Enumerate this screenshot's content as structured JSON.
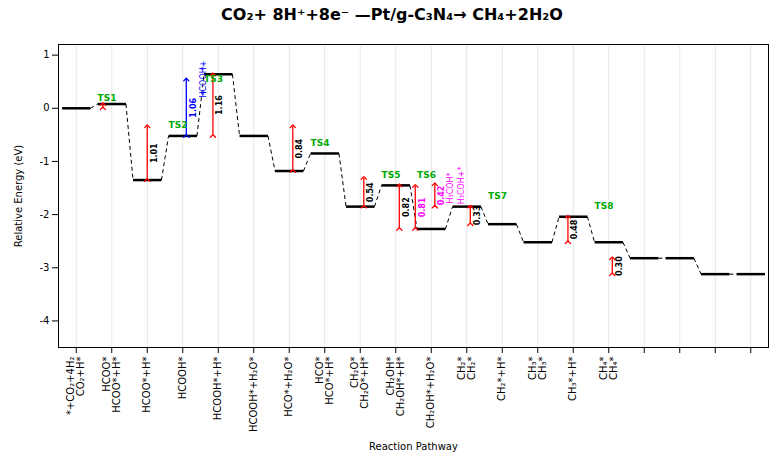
{
  "chart_data": {
    "type": "levels",
    "title": "CO₂+ 8H⁺+8e⁻ —Pt/g-C₃N₄→ CH₄+2H₂O",
    "xlabel": "Reaction Pathway",
    "ylabel": "Relative Energy (eV)",
    "categories": [
      "*+CO₂+4H₂\nCO₂+H*",
      "HCOO*\nHCOO*+H*",
      "HCOO*+H*",
      "HCOOH*",
      "HCOOH*+H*",
      "HCOOH*+H₂O*",
      "HCO*+H₂O*",
      "HCO*\nHCO*+H*",
      "CH₂O*\nCH₂O*+H*",
      "CH₂OH*\nCH₂OH*+H*",
      "CH₂OH*+H₂O*",
      "CH₂*\nCH₂*",
      "CH₂*+H*",
      "CH₃*\nCH₃*",
      "CH₃*+H*",
      "CH₄*\nCH₄*",
      null,
      null,
      null,
      null
    ],
    "values": [
      0.0,
      0.08,
      -1.35,
      -0.52,
      0.64,
      -0.52,
      -1.18,
      -0.85,
      -1.85,
      -1.45,
      -2.27,
      -1.85,
      -2.18,
      -2.52,
      -2.04,
      -2.52,
      -2.82,
      -2.82,
      -3.12,
      -3.12
    ],
    "color": "black",
    "ylim": [
      -4.5,
      1.2
    ],
    "yticks": [
      -4,
      -3,
      -2,
      -1,
      0,
      1
    ],
    "grid": true,
    "ts_labels": [
      {
        "text": "TS1",
        "x": 0.6,
        "y": 0.14,
        "color": "#00aa00"
      },
      {
        "text": "TS2",
        "x": 2.6,
        "y": -0.38,
        "color": "#00aa00"
      },
      {
        "text": "TS3",
        "x": 3.6,
        "y": 0.5,
        "color": "#00aa00"
      },
      {
        "text": "TS4",
        "x": 6.6,
        "y": -0.7,
        "color": "#00aa00"
      },
      {
        "text": "TS5",
        "x": 8.6,
        "y": -1.31,
        "color": "#00aa00"
      },
      {
        "text": "TS6",
        "x": 9.6,
        "y": -1.31,
        "color": "#00aa00"
      },
      {
        "text": "TS7",
        "x": 11.6,
        "y": -1.71,
        "color": "#00aa00"
      },
      {
        "text": "TS8",
        "x": 14.6,
        "y": -1.9,
        "color": "#00aa00"
      }
    ],
    "barriers": [
      {
        "x": 0.75,
        "from": 0.0,
        "to": 0.08,
        "color": "red"
      },
      {
        "x": 2.0,
        "from": -1.35,
        "to": -0.34,
        "color": "red",
        "label": "1.01",
        "label_color": "black"
      },
      {
        "x": 3.1,
        "from": -0.52,
        "to": 0.54,
        "color": "blue",
        "label": "1.06",
        "label_color": "blue"
      },
      {
        "x": 3.85,
        "from": -0.52,
        "to": 0.64,
        "color": "red",
        "label": "1.16",
        "label_color": "black"
      },
      {
        "x": 6.1,
        "from": -1.18,
        "to": -0.34,
        "color": "red",
        "label": "0.84",
        "label_color": "black"
      },
      {
        "x": 8.1,
        "from": -1.85,
        "to": -1.31,
        "color": "red",
        "label": "0.54",
        "label_color": "black"
      },
      {
        "x": 9.1,
        "from": -2.27,
        "to": -1.45,
        "color": "red",
        "label": "0.82",
        "label_color": "black"
      },
      {
        "x": 9.55,
        "from": -2.27,
        "to": -1.46,
        "color": "red",
        "label": "0.81",
        "label_color": "magenta"
      },
      {
        "x": 10.1,
        "from": -1.85,
        "to": -1.43,
        "color": "red",
        "label": "0.42",
        "label_color": "magenta"
      },
      {
        "x": 11.1,
        "from": -2.18,
        "to": -1.85,
        "color": "red",
        "label": "0.33",
        "label_color": "black"
      },
      {
        "x": 13.85,
        "from": -2.52,
        "to": -2.04,
        "color": "red",
        "label": "0.48",
        "label_color": "black"
      },
      {
        "x": 15.1,
        "from": -3.12,
        "to": -2.82,
        "color": "red",
        "label": "0.30",
        "label_color": "black"
      }
    ],
    "species_labels": [
      {
        "text": "*",
        "x": 3.62,
        "y": 0.75,
        "color": "blue"
      },
      {
        "text": "HCOOH+",
        "x": 3.58,
        "y": 0.55,
        "color": "blue"
      },
      {
        "text": "+",
        "x": 3.58,
        "y": 0.3,
        "color": "blue"
      },
      {
        "text": "H₃COH*",
        "x": 10.55,
        "y": -1.5,
        "color": "magenta"
      },
      {
        "text": "H₃COH+*",
        "x": 10.85,
        "y": -1.45,
        "color": "magenta"
      }
    ]
  }
}
